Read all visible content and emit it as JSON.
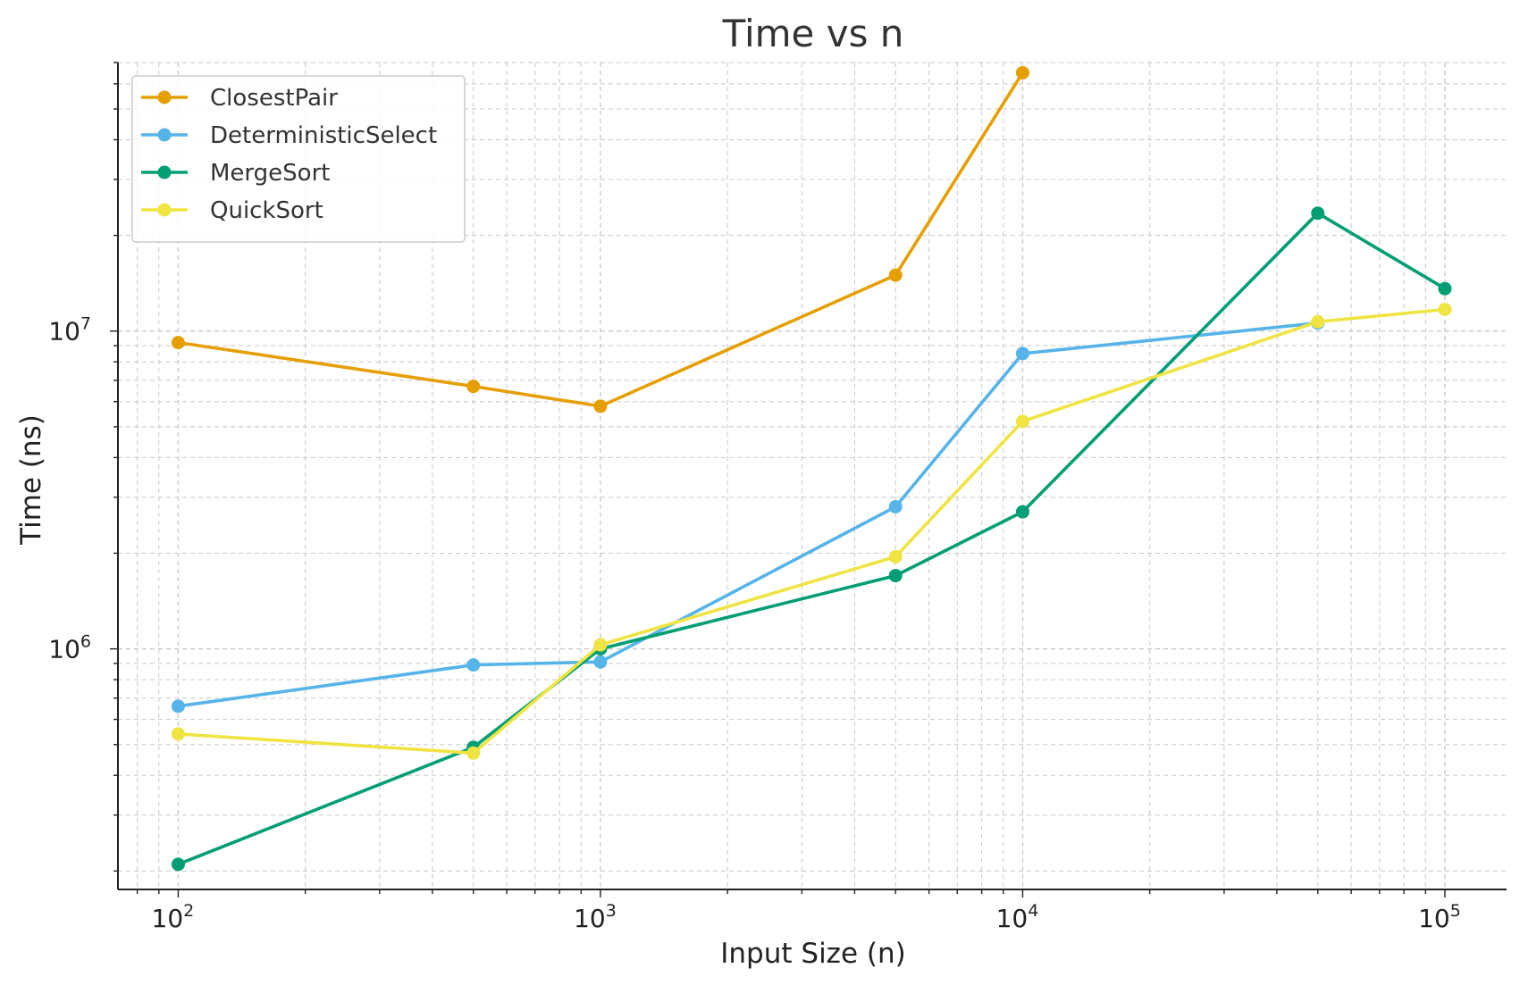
{
  "chart_data": {
    "type": "line",
    "title": "Time vs n",
    "xlabel": "Input Size (n)",
    "ylabel": "Time (ns)",
    "xscale": "log",
    "yscale": "log",
    "xlim": [
      72,
      140000
    ],
    "ylim": [
      175000,
      70000000
    ],
    "grid": true,
    "legend_position": "top-left",
    "x_ticks": [
      {
        "base": "10",
        "exp": "2",
        "value": 100
      },
      {
        "base": "10",
        "exp": "3",
        "value": 1000
      },
      {
        "base": "10",
        "exp": "4",
        "value": 10000
      },
      {
        "base": "10",
        "exp": "5",
        "value": 100000
      }
    ],
    "y_ticks": [
      {
        "base": "10",
        "exp": "6",
        "value": 1000000
      },
      {
        "base": "10",
        "exp": "7",
        "value": 10000000
      }
    ],
    "series": [
      {
        "name": "ClosestPair",
        "color": "#E69F00",
        "x": [
          100,
          500,
          1000,
          5000,
          10000
        ],
        "y": [
          9200000,
          6700000,
          5800000,
          15000000,
          65000000
        ]
      },
      {
        "name": "DeterministicSelect",
        "color": "#56B4E9",
        "x": [
          100,
          500,
          1000,
          5000,
          10000,
          50000
        ],
        "y": [
          660000,
          890000,
          910000,
          2800000,
          8500000,
          10600000
        ]
      },
      {
        "name": "MergeSort",
        "color": "#009E73",
        "x": [
          100,
          500,
          1000,
          5000,
          10000,
          50000,
          100000
        ],
        "y": [
          210000,
          490000,
          1000000,
          1700000,
          2700000,
          23500000,
          13600000
        ]
      },
      {
        "name": "QuickSort",
        "color": "#F0E442",
        "x": [
          100,
          500,
          1000,
          5000,
          10000,
          50000,
          100000
        ],
        "y": [
          540000,
          470000,
          1030000,
          1950000,
          5200000,
          10700000,
          11700000
        ]
      }
    ]
  }
}
